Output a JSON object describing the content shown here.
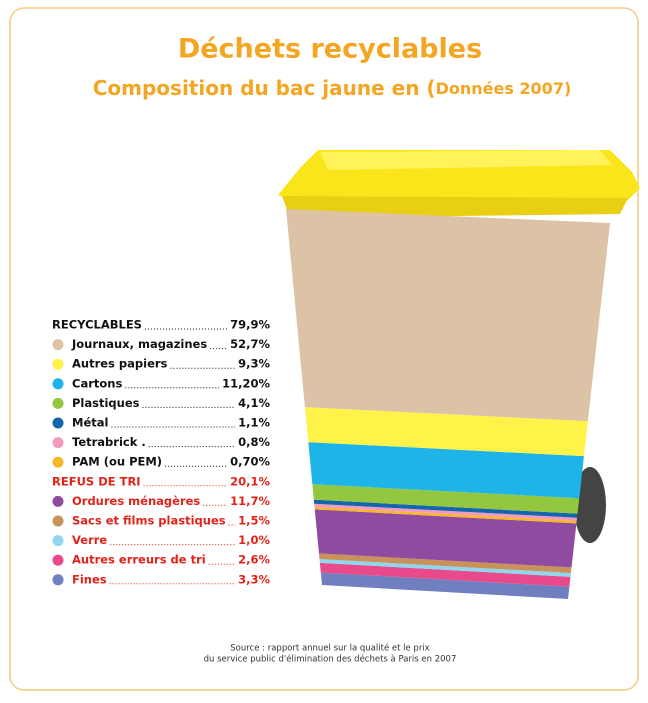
{
  "chart_data": {
    "type": "bin",
    "title": "Déchets recyclables",
    "subtitle": "Composition du bac jaune en (",
    "subtitle_note": "Données 2007)",
    "groups": [
      {
        "name": "RECYCLABLES",
        "total": 79.9,
        "total_label": "79,9%",
        "color": "#111111",
        "categories": [
          "Journaux, magazines",
          "Autres papiers",
          "Cartons",
          "Plastiques",
          "Métal",
          "Tetrabrick .",
          "PAM (ou PEM)"
        ],
        "values": [
          52.7,
          9.3,
          11.2,
          4.1,
          1.1,
          0.8,
          0.7
        ],
        "value_labels": [
          "52,7%",
          "9,3%",
          "11,20%",
          "4,1%",
          "1,1%",
          "0,8%",
          "0,70%"
        ],
        "colors": [
          "#dcc3a6",
          "#fff34a",
          "#1fb4e8",
          "#93c740",
          "#1366ad",
          "#f39ac0",
          "#f8b72a"
        ]
      },
      {
        "name": "REFUS DE TRI",
        "total": 20.1,
        "total_label": "20,1%",
        "color": "#e2231a",
        "categories": [
          "Ordures ménagères",
          "Sacs et films plastiques",
          "Verre",
          "Autres erreurs de tri",
          "Fines"
        ],
        "values": [
          11.7,
          1.5,
          1.0,
          2.6,
          3.3
        ],
        "value_labels": [
          "11,7%",
          "1,5%",
          "1,0%",
          "2,6%",
          "3,3%"
        ],
        "colors": [
          "#8e4b9f",
          "#c9925a",
          "#8fd6ef",
          "#e94a8c",
          "#6f7fbf"
        ]
      }
    ],
    "source": [
      "Source : rapport annuel sur la qualité et le prix",
      "du service public d'élimination des déchets à Paris en 2007"
    ]
  }
}
